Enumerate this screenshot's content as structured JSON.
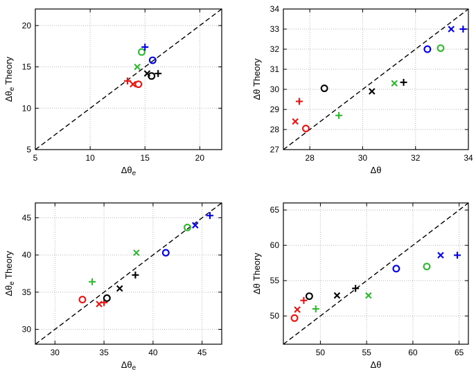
{
  "figure": {
    "background": "#ffffff"
  },
  "colors": {
    "red": "#ee1111",
    "green": "#2db82d",
    "blue": "#0000ee",
    "black": "#000000",
    "grid": "#b4b4b4",
    "axis": "#000000",
    "identity_line": "#000000"
  },
  "chart_data": [
    {
      "type": "scatter",
      "position": "top-left",
      "xlabel": {
        "base": "Δθ",
        "sub": "e",
        "rest": ""
      },
      "ylabel": {
        "base": "Δθ",
        "sub": "e",
        "rest": " Theory"
      },
      "xlim": [
        5,
        22
      ],
      "ylim": [
        5,
        22
      ],
      "xticks": [
        5,
        10,
        15,
        20
      ],
      "yticks": [
        5,
        10,
        15,
        20
      ],
      "grid": true,
      "identity_line": true,
      "points": [
        {
          "color": "red",
          "marker": "plus",
          "x": 13.4,
          "y": 13.3
        },
        {
          "color": "red",
          "marker": "cross",
          "x": 13.9,
          "y": 12.9
        },
        {
          "color": "red",
          "marker": "circle",
          "x": 14.4,
          "y": 12.9
        },
        {
          "color": "green",
          "marker": "cross",
          "x": 14.3,
          "y": 15.0
        },
        {
          "color": "green",
          "marker": "circle",
          "x": 14.7,
          "y": 16.8
        },
        {
          "color": "blue",
          "marker": "plus",
          "x": 15.0,
          "y": 17.4
        },
        {
          "color": "blue",
          "marker": "circle",
          "x": 15.7,
          "y": 15.8
        },
        {
          "color": "black",
          "marker": "cross",
          "x": 15.2,
          "y": 14.2
        },
        {
          "color": "black",
          "marker": "circle",
          "x": 15.6,
          "y": 13.9
        },
        {
          "color": "black",
          "marker": "plus",
          "x": 16.2,
          "y": 14.2
        }
      ]
    },
    {
      "type": "scatter",
      "position": "top-right",
      "xlabel": {
        "base": "Δθ",
        "sub": "",
        "rest": ""
      },
      "ylabel": {
        "base": "Δθ",
        "sub": "",
        "rest": " Theory"
      },
      "xlim": [
        27,
        34
      ],
      "ylim": [
        27,
        34
      ],
      "xticks": [
        28,
        30,
        32,
        34
      ],
      "yticks": [
        27,
        28,
        29,
        30,
        31,
        32,
        33,
        34
      ],
      "grid": true,
      "identity_line": true,
      "points": [
        {
          "color": "red",
          "marker": "plus",
          "x": 27.6,
          "y": 29.4
        },
        {
          "color": "red",
          "marker": "cross",
          "x": 27.45,
          "y": 28.4
        },
        {
          "color": "red",
          "marker": "circle",
          "x": 27.85,
          "y": 28.05
        },
        {
          "color": "black",
          "marker": "circle",
          "x": 28.55,
          "y": 30.05
        },
        {
          "color": "green",
          "marker": "plus",
          "x": 29.1,
          "y": 28.7
        },
        {
          "color": "black",
          "marker": "cross",
          "x": 30.35,
          "y": 29.9
        },
        {
          "color": "green",
          "marker": "cross",
          "x": 31.2,
          "y": 30.3
        },
        {
          "color": "black",
          "marker": "plus",
          "x": 31.55,
          "y": 30.35
        },
        {
          "color": "blue",
          "marker": "circle",
          "x": 32.45,
          "y": 32.0
        },
        {
          "color": "green",
          "marker": "circle",
          "x": 32.95,
          "y": 32.05
        },
        {
          "color": "blue",
          "marker": "cross",
          "x": 33.35,
          "y": 33.0
        },
        {
          "color": "blue",
          "marker": "plus",
          "x": 33.8,
          "y": 33.0
        }
      ]
    },
    {
      "type": "scatter",
      "position": "bottom-left",
      "xlabel": {
        "base": "Δθ",
        "sub": "e",
        "rest": ""
      },
      "ylabel": {
        "base": "Δθ",
        "sub": "e",
        "rest": " Theory"
      },
      "xlim": [
        28,
        47
      ],
      "ylim": [
        28,
        47
      ],
      "xticks": [
        30,
        35,
        40,
        45
      ],
      "yticks": [
        30,
        35,
        40,
        45
      ],
      "grid": true,
      "identity_line": true,
      "points": [
        {
          "color": "red",
          "marker": "circle",
          "x": 32.8,
          "y": 34.0
        },
        {
          "color": "green",
          "marker": "plus",
          "x": 33.8,
          "y": 36.4
        },
        {
          "color": "red",
          "marker": "cross",
          "x": 34.5,
          "y": 33.4
        },
        {
          "color": "red",
          "marker": "plus",
          "x": 35.0,
          "y": 33.6
        },
        {
          "color": "black",
          "marker": "circle",
          "x": 35.3,
          "y": 34.2
        },
        {
          "color": "black",
          "marker": "cross",
          "x": 36.6,
          "y": 35.5
        },
        {
          "color": "black",
          "marker": "plus",
          "x": 38.2,
          "y": 37.3
        },
        {
          "color": "green",
          "marker": "cross",
          "x": 38.3,
          "y": 40.3
        },
        {
          "color": "blue",
          "marker": "circle",
          "x": 41.3,
          "y": 40.3
        },
        {
          "color": "green",
          "marker": "circle",
          "x": 43.5,
          "y": 43.7
        },
        {
          "color": "blue",
          "marker": "cross",
          "x": 44.3,
          "y": 44.0
        },
        {
          "color": "blue",
          "marker": "plus",
          "x": 45.8,
          "y": 45.3
        }
      ]
    },
    {
      "type": "scatter",
      "position": "bottom-right",
      "xlabel": {
        "base": "Δθ",
        "sub": "",
        "rest": ""
      },
      "ylabel": {
        "base": "Δθ",
        "sub": "",
        "rest": " Theory"
      },
      "xlim": [
        46,
        66
      ],
      "ylim": [
        46,
        66
      ],
      "xticks": [
        50,
        55,
        60,
        65
      ],
      "yticks": [
        50,
        55,
        60,
        65
      ],
      "grid": true,
      "identity_line": true,
      "points": [
        {
          "color": "red",
          "marker": "circle",
          "x": 47.2,
          "y": 49.7
        },
        {
          "color": "red",
          "marker": "cross",
          "x": 47.5,
          "y": 50.9
        },
        {
          "color": "red",
          "marker": "plus",
          "x": 48.2,
          "y": 52.2
        },
        {
          "color": "black",
          "marker": "circle",
          "x": 48.8,
          "y": 52.8
        },
        {
          "color": "green",
          "marker": "plus",
          "x": 49.5,
          "y": 51.0
        },
        {
          "color": "black",
          "marker": "cross",
          "x": 51.8,
          "y": 52.9
        },
        {
          "color": "black",
          "marker": "plus",
          "x": 53.8,
          "y": 53.9
        },
        {
          "color": "green",
          "marker": "cross",
          "x": 55.2,
          "y": 52.9
        },
        {
          "color": "blue",
          "marker": "circle",
          "x": 58.2,
          "y": 56.7
        },
        {
          "color": "green",
          "marker": "circle",
          "x": 61.5,
          "y": 57.0
        },
        {
          "color": "blue",
          "marker": "cross",
          "x": 63.0,
          "y": 58.6
        },
        {
          "color": "blue",
          "marker": "plus",
          "x": 64.8,
          "y": 58.6
        }
      ]
    }
  ]
}
